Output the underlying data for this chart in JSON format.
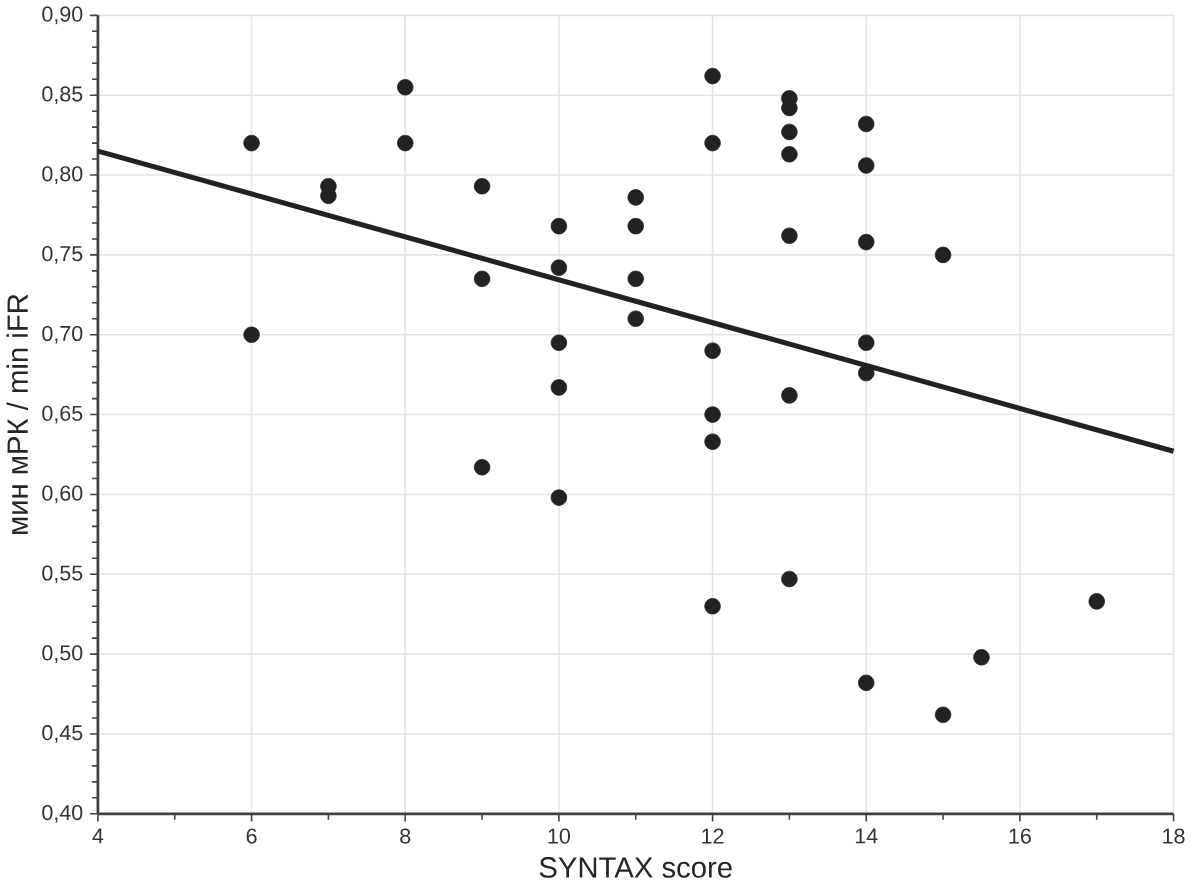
{
  "chart_data": {
    "type": "scatter",
    "xlabel": "SYNTAX score",
    "ylabel": "мин мРК / min iFR",
    "xlim": [
      4,
      18
    ],
    "xticks": [
      4,
      6,
      8,
      10,
      12,
      14,
      16,
      18
    ],
    "ylim": [
      0.4,
      0.9
    ],
    "yticks": [
      {
        "value": 0.4,
        "label": "0,40"
      },
      {
        "value": 0.45,
        "label": "0,45"
      },
      {
        "value": 0.5,
        "label": "0,50"
      },
      {
        "value": 0.55,
        "label": "0,55"
      },
      {
        "value": 0.6,
        "label": "0,60"
      },
      {
        "value": 0.65,
        "label": "0,65"
      },
      {
        "value": 0.7,
        "label": "0,70"
      },
      {
        "value": 0.75,
        "label": "0,75"
      },
      {
        "value": 0.8,
        "label": "0,80"
      },
      {
        "value": 0.85,
        "label": "0,85"
      },
      {
        "value": 0.9,
        "label": "0,90"
      }
    ],
    "grid": true,
    "series": [
      {
        "marker": "circle",
        "color": "#222222",
        "x": [
          6,
          6,
          7,
          7,
          8,
          8,
          9,
          9,
          9,
          10,
          10,
          10,
          10,
          10,
          11,
          11,
          11,
          11,
          12,
          12,
          12,
          12,
          12,
          12,
          13,
          13,
          13,
          13,
          13,
          13,
          13,
          14,
          14,
          14,
          14,
          14,
          14,
          15,
          15,
          15.5,
          17
        ],
        "values": [
          0.82,
          0.7,
          0.793,
          0.787,
          0.855,
          0.82,
          0.793,
          0.735,
          0.617,
          0.768,
          0.742,
          0.695,
          0.667,
          0.598,
          0.786,
          0.768,
          0.735,
          0.71,
          0.862,
          0.82,
          0.69,
          0.65,
          0.633,
          0.53,
          0.848,
          0.842,
          0.827,
          0.813,
          0.762,
          0.662,
          0.547,
          0.832,
          0.806,
          0.758,
          0.695,
          0.676,
          0.482,
          0.75,
          0.462,
          0.498,
          0.533
        ]
      },
      {
        "type": "line",
        "marker": "none",
        "color": "#222222",
        "x": [
          4,
          18
        ],
        "values": [
          0.815,
          0.627
        ]
      }
    ]
  }
}
